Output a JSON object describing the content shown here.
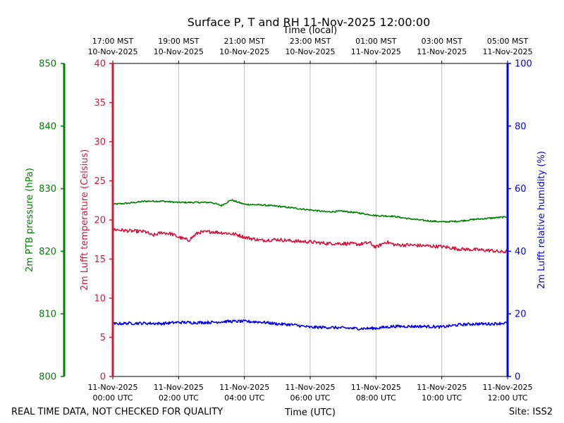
{
  "chart_data": {
    "type": "line",
    "title": "Surface P, T and RH 11-Nov-2025 12:00:00",
    "top_axis_label": "Time (local)",
    "xlabel": "Time (UTC)",
    "footer_left": "REAL TIME DATA, NOT CHECKED FOR QUALITY",
    "footer_right": "Site: ISS2",
    "x_unit": "hours since 11-Nov-2025 00:00 UTC",
    "xlim": [
      0,
      12
    ],
    "bottom_ticks": [
      {
        "x": 0,
        "line1": "11-Nov-2025",
        "line2": "00:00 UTC"
      },
      {
        "x": 2,
        "line1": "11-Nov-2025",
        "line2": "02:00 UTC"
      },
      {
        "x": 4,
        "line1": "11-Nov-2025",
        "line2": "04:00 UTC"
      },
      {
        "x": 6,
        "line1": "11-Nov-2025",
        "line2": "06:00 UTC"
      },
      {
        "x": 8,
        "line1": "11-Nov-2025",
        "line2": "08:00 UTC"
      },
      {
        "x": 10,
        "line1": "11-Nov-2025",
        "line2": "10:00 UTC"
      },
      {
        "x": 12,
        "line1": "11-Nov-2025",
        "line2": "12:00 UTC"
      }
    ],
    "top_ticks": [
      {
        "x": 0,
        "line1": "17:00 MST",
        "line2": "10-Nov-2025"
      },
      {
        "x": 2,
        "line1": "19:00 MST",
        "line2": "10-Nov-2025"
      },
      {
        "x": 4,
        "line1": "21:00 MST",
        "line2": "10-Nov-2025"
      },
      {
        "x": 6,
        "line1": "23:00 MST",
        "line2": "10-Nov-2025"
      },
      {
        "x": 8,
        "line1": "01:00 MST",
        "line2": "11-Nov-2025"
      },
      {
        "x": 10,
        "line1": "03:00 MST",
        "line2": "11-Nov-2025"
      },
      {
        "x": 12,
        "line1": "05:00 MST",
        "line2": "11-Nov-2025"
      }
    ],
    "grid": "vertical",
    "axes": {
      "pressure": {
        "label": "2m PTB pressure (hPa)",
        "color": "#008000",
        "ylim": [
          800,
          850
        ],
        "ticks": [
          800,
          810,
          820,
          830,
          840,
          850
        ]
      },
      "temperature": {
        "label": "2m Lufft temperature (Celsius)",
        "color": "#dc143c",
        "ylim": [
          0,
          40
        ],
        "ticks": [
          0,
          5,
          10,
          15,
          20,
          25,
          30,
          35,
          40
        ]
      },
      "humidity": {
        "label": "2m Lufft relative humidity (%)",
        "color": "#0000ee",
        "ylim": [
          0,
          100
        ],
        "ticks": [
          0,
          20,
          40,
          60,
          80,
          100
        ]
      }
    },
    "series": [
      {
        "axis": "pressure",
        "color": "#008000",
        "x": [
          0,
          0.5,
          1,
          1.5,
          2,
          2.5,
          3,
          3.3,
          3.6,
          4,
          4.5,
          5,
          5.5,
          6,
          6.5,
          7,
          7.5,
          8,
          8.5,
          9,
          9.5,
          10,
          10.5,
          11,
          11.5,
          12
        ],
        "y": [
          827.5,
          827.7,
          828.0,
          828.0,
          827.8,
          827.8,
          827.8,
          827.3,
          828.2,
          827.5,
          827.4,
          827.2,
          826.9,
          826.6,
          826.3,
          826.4,
          826.1,
          825.7,
          825.6,
          825.2,
          824.9,
          824.7,
          824.8,
          825.1,
          825.3,
          825.5
        ]
      },
      {
        "axis": "temperature",
        "color": "#dc143c",
        "x": [
          0,
          0.5,
          1,
          1.2,
          1.5,
          1.8,
          2,
          2.3,
          2.6,
          3,
          3.5,
          3.8,
          4,
          4.5,
          5,
          5.5,
          6,
          6.5,
          7,
          7.5,
          7.8,
          8,
          8.3,
          8.6,
          9,
          9.5,
          10,
          10.5,
          11,
          11.5,
          11.8,
          12
        ],
        "y": [
          18.8,
          18.6,
          18.5,
          18.0,
          18.4,
          18.2,
          17.8,
          17.4,
          18.4,
          18.5,
          18.3,
          18.1,
          17.8,
          17.4,
          17.5,
          17.3,
          17.2,
          17.0,
          17.0,
          16.9,
          17.1,
          16.5,
          17.2,
          16.8,
          16.8,
          16.7,
          16.6,
          16.3,
          16.2,
          16.1,
          15.9,
          16.0
        ]
      },
      {
        "axis": "humidity",
        "color": "#0000ee",
        "x": [
          0,
          0.5,
          1,
          1.5,
          2,
          2.5,
          3,
          3.5,
          4,
          4.5,
          5,
          5.5,
          6,
          6.5,
          7,
          7.5,
          8,
          8.5,
          9,
          9.5,
          10,
          10.5,
          11,
          11.5,
          12
        ],
        "y": [
          16.8,
          17.0,
          17.0,
          16.9,
          17.3,
          17.2,
          17.3,
          17.6,
          17.6,
          17.4,
          16.8,
          16.5,
          15.7,
          15.7,
          15.5,
          15.3,
          15.4,
          16.0,
          16.0,
          16.0,
          15.8,
          16.5,
          16.8,
          16.8,
          17.1
        ]
      }
    ]
  }
}
